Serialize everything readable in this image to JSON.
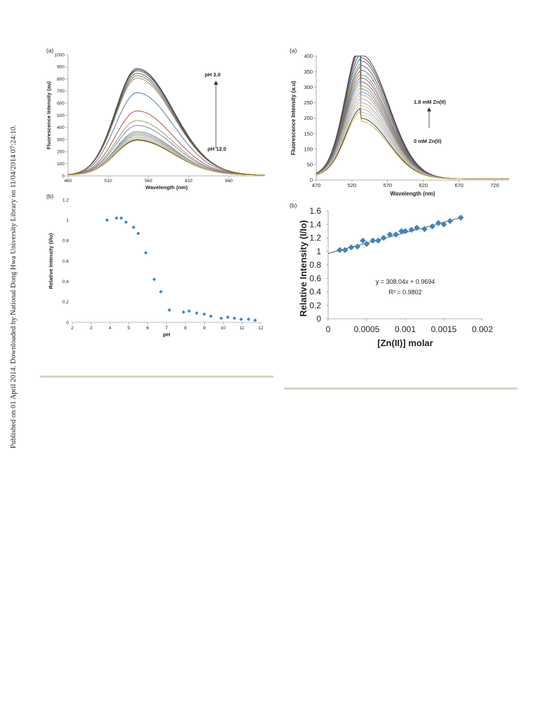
{
  "sidebar_note": "Published on 01 April 2014. Downloaded by National Dong Hwa University Library on 11/04/2014 07:24:10.",
  "colors": {
    "marker": "#3b87c4",
    "divider": "#d9d4c4",
    "fit_line": "#444444",
    "spectra": [
      "#2b3f6b",
      "#7a2e2e",
      "#4f6e2b",
      "#5a3d7a",
      "#2a7a8c",
      "#c77a2e",
      "#3e6fa8",
      "#b03a3a",
      "#7ea34a",
      "#8e6ab0",
      "#35a5c2",
      "#e0994a",
      "#8aa9d6",
      "#d98c8c",
      "#b9cf8f",
      "#b8a6d1",
      "#8fd0e0",
      "#f2c08a",
      "#1f2b4a",
      "#c9b22e"
    ]
  },
  "chart_data": [
    {
      "id": "left-a",
      "panel_label": "(a)",
      "type": "line",
      "xlabel": "Wavelength (nm)",
      "ylabel": "Fluorescence Intensity (au)",
      "xlim": [
        460,
        705
      ],
      "ylim": [
        0,
        1000
      ],
      "xticks": [
        460,
        510,
        560,
        610,
        660
      ],
      "yticks": [
        0,
        100,
        200,
        300,
        400,
        500,
        600,
        700,
        800,
        900,
        1000
      ],
      "peak_x": 546,
      "peak_values": [
        880,
        870,
        860,
        840,
        820,
        800,
        680,
        530,
        450,
        410,
        360,
        350,
        340,
        330,
        320,
        310,
        300,
        295,
        290,
        285
      ],
      "annotations": {
        "top": "pH 3.0",
        "bottom": "pH 12.0"
      }
    },
    {
      "id": "left-b",
      "panel_label": "(b)",
      "type": "scatter",
      "xlabel": "pH",
      "ylabel": "Relative Intensity (I/Io)",
      "xlim": [
        2,
        12
      ],
      "ylim": [
        0,
        1.2
      ],
      "xticks": [
        2,
        3,
        4,
        5,
        6,
        7,
        8,
        9,
        10,
        11,
        12
      ],
      "yticks": [
        0,
        0.2,
        0.4,
        0.6,
        0.8,
        1,
        1.2
      ],
      "ytick_labels": [
        "0",
        "0.2",
        "0.4",
        "0.6",
        "0.8",
        "1",
        "1.2"
      ],
      "points": [
        [
          3.85,
          1.0
        ],
        [
          4.35,
          1.02
        ],
        [
          4.6,
          1.02
        ],
        [
          4.85,
          0.98
        ],
        [
          5.25,
          0.93
        ],
        [
          5.5,
          0.87
        ],
        [
          5.9,
          0.68
        ],
        [
          6.35,
          0.42
        ],
        [
          6.7,
          0.3
        ],
        [
          7.15,
          0.12
        ],
        [
          7.9,
          0.1
        ],
        [
          8.2,
          0.11
        ],
        [
          8.6,
          0.09
        ],
        [
          9.0,
          0.08
        ],
        [
          9.35,
          0.06
        ],
        [
          9.9,
          0.04
        ],
        [
          10.25,
          0.05
        ],
        [
          10.6,
          0.04
        ],
        [
          10.95,
          0.03
        ],
        [
          11.35,
          0.03
        ],
        [
          11.7,
          0.02
        ]
      ]
    },
    {
      "id": "right-a",
      "panel_label": "(a)",
      "type": "line",
      "xlabel": "Wavelength (nm)",
      "ylabel": "Fluorescence Intensity (a.u)",
      "xlim": [
        470,
        740
      ],
      "ylim": [
        0,
        400
      ],
      "xticks": [
        470,
        520,
        570,
        620,
        670,
        720
      ],
      "yticks": [
        0,
        50,
        100,
        150,
        200,
        250,
        300,
        350,
        400
      ],
      "peak_x": 533,
      "peak_values": [
        400,
        390,
        380,
        365,
        350,
        335,
        325,
        312,
        300,
        290,
        280,
        270,
        258,
        245,
        235,
        225,
        215,
        205,
        195,
        185
      ],
      "annotations": {
        "top": "1.8 mM Zn(II)",
        "bottom": "0 mM Zn(II)"
      }
    },
    {
      "id": "right-b",
      "panel_label": "(b)",
      "type": "scatter",
      "xlabel": "[Zn(II)] molar",
      "ylabel": "Relative Intensity (I/Io)",
      "xlim": [
        0,
        0.002
      ],
      "ylim": [
        0,
        1.6
      ],
      "xticks": [
        0,
        0.0005,
        0.001,
        0.0015,
        0.002
      ],
      "xtick_labels": [
        "0",
        "0.0005",
        "0.001",
        "0.0015",
        "0.002"
      ],
      "yticks": [
        0,
        0.2,
        0.4,
        0.6,
        0.8,
        1,
        1.2,
        1.4,
        1.6
      ],
      "ytick_labels": [
        "0",
        "0.2",
        "0.4",
        "0.6",
        "0.8",
        "1",
        "1.2",
        "1.4",
        "1.6"
      ],
      "points": [
        [
          0.00015,
          1.02
        ],
        [
          0.00022,
          1.02
        ],
        [
          0.0003,
          1.06
        ],
        [
          0.00038,
          1.07
        ],
        [
          0.00045,
          1.16
        ],
        [
          0.0005,
          1.11
        ],
        [
          0.00058,
          1.16
        ],
        [
          0.00065,
          1.16
        ],
        [
          0.00072,
          1.2
        ],
        [
          0.0008,
          1.25
        ],
        [
          0.00088,
          1.25
        ],
        [
          0.00095,
          1.3
        ],
        [
          0.001,
          1.3
        ],
        [
          0.00108,
          1.32
        ],
        [
          0.00115,
          1.35
        ],
        [
          0.00125,
          1.33
        ],
        [
          0.00135,
          1.37
        ],
        [
          0.00143,
          1.42
        ],
        [
          0.0015,
          1.4
        ],
        [
          0.00158,
          1.45
        ],
        [
          0.00172,
          1.5
        ]
      ],
      "fit": {
        "slope": 308.04,
        "intercept": 0.9694,
        "x_range": [
          0,
          0.00175
        ]
      },
      "equation": "y = 308.04x + 0.9694",
      "r2_label": "R² = 0.9802"
    }
  ]
}
